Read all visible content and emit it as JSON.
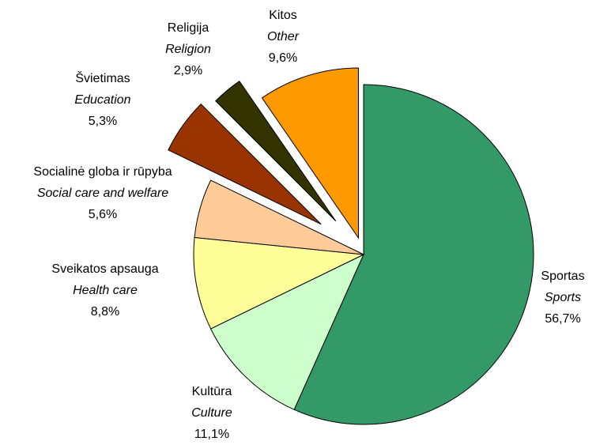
{
  "chart_data": {
    "type": "pie",
    "categories": [
      "Sportas",
      "Kultūra",
      "Sveikatos apsauga",
      "Socialinė globa ir rūpyba",
      "Švietimas",
      "Religija",
      "Kitos"
    ],
    "categories_en": [
      "Sports",
      "Culture",
      "Health care",
      "Social care and welfare",
      "Education",
      "Religion",
      "Other"
    ],
    "values": [
      56.7,
      11.1,
      8.8,
      5.6,
      5.3,
      2.9,
      9.6
    ],
    "value_labels": [
      "56,7%",
      "11,1%",
      "8,8%",
      "5,6%",
      "5,3%",
      "2,9%",
      "9,6%"
    ],
    "colors": [
      "#339966",
      "#ccffcc",
      "#ffff99",
      "#ffcc99",
      "#993300",
      "#333300",
      "#ff9900"
    ]
  }
}
